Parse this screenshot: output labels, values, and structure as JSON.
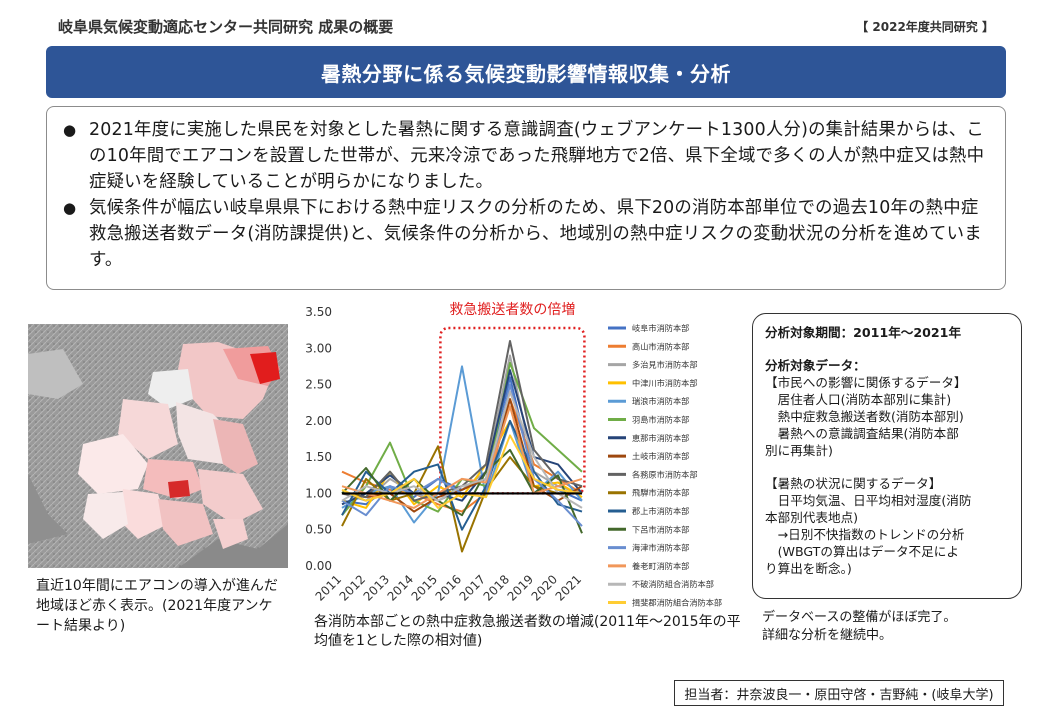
{
  "header": {
    "title": "岐阜県気候変動適応センター共同研究 成果の概要",
    "tag": "【 2022年度共同研究 】"
  },
  "banner": {
    "title": "暑熱分野に係る気候変動影響情報収集・分析"
  },
  "bullets": [
    {
      "text": "2021年度に実施した県民を対象とした暑熱に関する意識調査(ウェブアンケート1300人分)の集計結果からは、この10年間でエアコンを設置した世帯が、元来冷涼であった飛騨地方で2倍、県下全域で多くの人が熱中症又は熱中症疑いを経験していることが明らかになりました。"
    },
    {
      "text": "気候条件が幅広い岐阜県県下における熱中症リスクの分析のため、県下20の消防本部単位での過去10年の熱中症救急搬送者数データ(消防課提供)と、気候条件の分析から、地域別の熱中症リスクの変動状況の分析を進めています。"
    }
  ],
  "map": {
    "caption": "直近10年間にエアコンの導入が進んだ地域ほど赤く表示。(2021年度アンケート結果より)"
  },
  "chart_caption": "各消防本部ごとの熱中症救急搬送者数の増減(2011年～2015年の平均値を1とした際の相対値)",
  "chart_data": {
    "type": "line",
    "x": [
      "2011",
      "2012",
      "2013",
      "2014",
      "2015",
      "2016",
      "2017",
      "2018",
      "2019",
      "2020",
      "2021"
    ],
    "ylim": [
      0,
      3.5
    ],
    "yticks": [
      "0.00",
      "0.50",
      "1.00",
      "1.50",
      "2.00",
      "2.50",
      "3.00",
      "3.50"
    ],
    "reference_line": 1.0,
    "annotation": "救急搬送者数の倍増",
    "annotation_color": "#e02020",
    "series": [
      {
        "name": "岐阜市消防本部",
        "color": "#4472c4",
        "values": [
          0.9,
          0.85,
          1.1,
          0.95,
          1.2,
          1.05,
          1.2,
          2.6,
          1.2,
          1.05,
          0.9
        ]
      },
      {
        "name": "高山市消防本部",
        "color": "#ed7d31",
        "values": [
          1.3,
          1.15,
          1.05,
          1.0,
          0.85,
          0.75,
          1.0,
          2.3,
          1.4,
          1.2,
          1.0
        ]
      },
      {
        "name": "多治見市消防本部",
        "color": "#a5a5a5",
        "values": [
          1.0,
          0.9,
          1.2,
          1.0,
          0.9,
          1.05,
          1.3,
          2.9,
          1.3,
          1.1,
          1.0
        ]
      },
      {
        "name": "中津川市消防本部",
        "color": "#ffc000",
        "values": [
          0.9,
          0.8,
          1.3,
          0.85,
          1.1,
          0.95,
          1.4,
          2.0,
          1.1,
          1.15,
          0.95
        ]
      },
      {
        "name": "瑞浪市消防本部",
        "color": "#5b9bd5",
        "values": [
          0.8,
          1.0,
          1.1,
          0.6,
          1.0,
          2.75,
          0.95,
          2.0,
          1.0,
          1.3,
          0.9
        ]
      },
      {
        "name": "羽島市消防本部",
        "color": "#70ad47",
        "values": [
          0.7,
          1.1,
          1.7,
          0.9,
          0.75,
          1.2,
          1.1,
          2.8,
          1.9,
          1.6,
          1.3
        ]
      },
      {
        "name": "恵那市消防本部",
        "color": "#264478",
        "values": [
          0.85,
          1.0,
          1.25,
          1.0,
          1.0,
          0.9,
          1.3,
          2.7,
          1.5,
          1.4,
          1.0
        ]
      },
      {
        "name": "土岐市消防本部",
        "color": "#9e480e",
        "values": [
          1.0,
          0.95,
          1.0,
          0.75,
          0.95,
          1.05,
          1.2,
          2.3,
          1.1,
          0.9,
          1.1
        ]
      },
      {
        "name": "各務原市消防本部",
        "color": "#636363",
        "values": [
          1.0,
          0.95,
          1.3,
          0.9,
          1.0,
          1.1,
          1.4,
          3.1,
          1.6,
          1.2,
          1.1
        ]
      },
      {
        "name": "飛騨市消防本部",
        "color": "#997300",
        "values": [
          0.55,
          1.2,
          0.9,
          1.0,
          1.65,
          0.2,
          1.05,
          1.5,
          1.1,
          1.0,
          1.0
        ]
      },
      {
        "name": "郡上市消防本部",
        "color": "#255e91",
        "values": [
          0.7,
          1.3,
          1.0,
          1.3,
          1.4,
          0.5,
          1.1,
          2.0,
          1.3,
          0.85,
          0.75
        ]
      },
      {
        "name": "下呂市消防本部",
        "color": "#43682b",
        "values": [
          1.0,
          1.35,
          0.9,
          1.2,
          0.9,
          0.7,
          1.3,
          1.6,
          1.0,
          1.25,
          0.45
        ]
      },
      {
        "name": "海津市消防本部",
        "color": "#698ed0",
        "values": [
          0.9,
          0.7,
          1.1,
          1.0,
          1.2,
          1.0,
          1.0,
          2.5,
          1.2,
          0.9,
          0.55
        ]
      },
      {
        "name": "養老町消防本部",
        "color": "#f1975a",
        "values": [
          1.1,
          1.0,
          0.9,
          0.8,
          1.0,
          1.2,
          1.15,
          2.2,
          1.0,
          1.1,
          1.2
        ]
      },
      {
        "name": "不破消防組合消防本部",
        "color": "#b7b7b7",
        "values": [
          0.9,
          1.1,
          1.0,
          1.1,
          0.9,
          1.1,
          1.2,
          2.4,
          1.5,
          1.0,
          0.8
        ]
      },
      {
        "name": "揖斐郡消防組合消防本部",
        "color": "#ffcd33",
        "values": [
          1.05,
          0.9,
          1.0,
          1.2,
          0.8,
          1.0,
          0.95,
          1.8,
          1.2,
          1.05,
          1.0
        ]
      }
    ]
  },
  "info": {
    "lines": [
      {
        "text": "分析対象期間：2011年～2021年",
        "strong": true
      },
      {
        "text": "",
        "blank": true
      },
      {
        "text": "分析対象データ：",
        "strong": true
      },
      {
        "text": "【市民への影響に関係するデータ】"
      },
      {
        "text": "　居住者人口(消防本部別に集計)"
      },
      {
        "text": "　熱中症救急搬送者数(消防本部別)"
      },
      {
        "text": "　暑熱への意識調査結果(消防本部"
      },
      {
        "text": "別に再集計)"
      },
      {
        "text": "",
        "blank": true
      },
      {
        "text": "【暑熱の状況に関するデータ】"
      },
      {
        "text": "　日平均気温、日平均相対湿度(消防"
      },
      {
        "text": "本部別代表地点)"
      },
      {
        "text": "　→日別不快指数のトレンドの分析"
      },
      {
        "text": "　(WBGTの算出はデータ不足によ"
      },
      {
        "text": "り算出を断念。)"
      }
    ]
  },
  "status_note": {
    "line1": "データベースの整備がほぼ完了。",
    "line2": "詳細な分析を継続中。"
  },
  "credit": "担当者：井奈波良一・原田守啓・吉野純・(岐阜大学)"
}
